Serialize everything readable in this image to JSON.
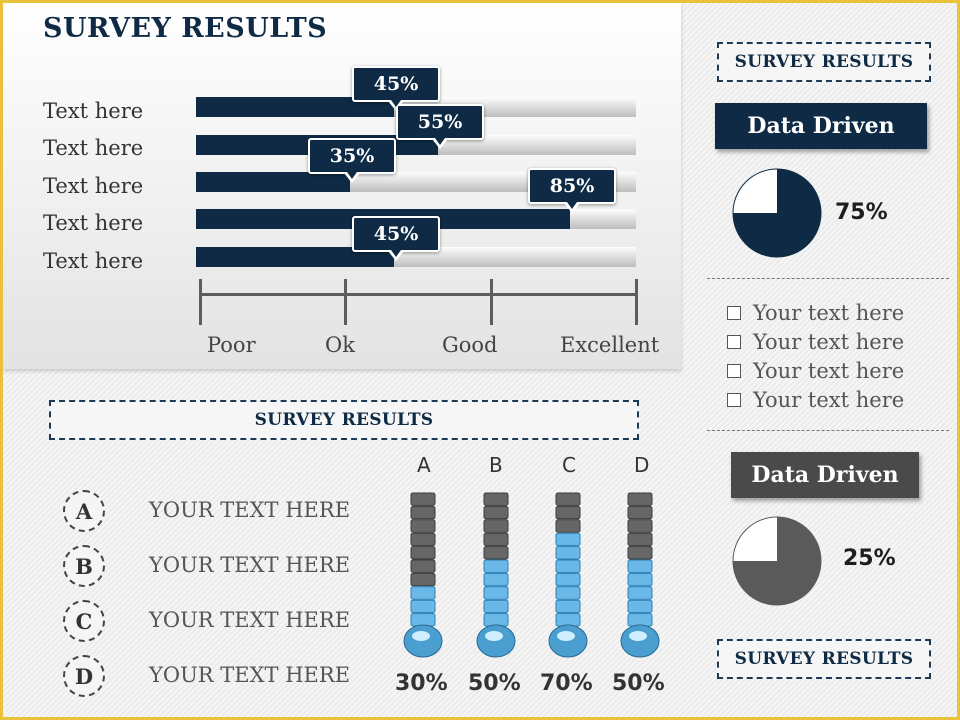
{
  "main": {
    "title": "SURVEY RESULTS",
    "scale_labels": [
      "Poor",
      "Ok",
      "Good",
      "Excellent"
    ]
  },
  "section_banner": "SURVEY RESULTS",
  "side": {
    "top_banner": "SURVEY RESULTS",
    "bottom_banner": "SURVEY RESULTS",
    "card1": {
      "title": "Data Driven",
      "value": "75%",
      "color": "#0e2a44"
    },
    "card2": {
      "title": "Data Driven",
      "value": "25%",
      "color": "#4a4a4a"
    },
    "checklist": [
      "Your text here",
      "Your text here",
      "Your text here",
      "Your text here"
    ]
  },
  "options": [
    {
      "letter": "A",
      "text": "YOUR TEXT HERE"
    },
    {
      "letter": "B",
      "text": "YOUR TEXT HERE"
    },
    {
      "letter": "C",
      "text": "YOUR TEXT HERE"
    },
    {
      "letter": "D",
      "text": "YOUR TEXT HERE"
    }
  ],
  "chart_data": [
    {
      "type": "bar",
      "orientation": "horizontal",
      "title": "SURVEY RESULTS",
      "categories": [
        "Text here",
        "Text here",
        "Text here",
        "Text here",
        "Text here"
      ],
      "values": [
        45,
        55,
        35,
        85,
        45
      ],
      "value_labels": [
        "45%",
        "55%",
        "35%",
        "85%",
        "45%"
      ],
      "scale_labels": [
        "Poor",
        "Ok",
        "Good",
        "Excellent"
      ],
      "xlim": [
        0,
        100
      ],
      "color": "#0e2a44"
    },
    {
      "type": "pie",
      "slices": [
        {
          "label": "",
          "value": 75,
          "color": "#0e2a44"
        },
        {
          "label": "",
          "value": 25,
          "color": "#ffffff"
        }
      ],
      "value_label": "75%"
    },
    {
      "type": "pie",
      "slices": [
        {
          "label": "",
          "value": 25,
          "color": "#ffffff"
        },
        {
          "label": "",
          "value": 75,
          "color": "#5a5a5a"
        }
      ],
      "value_label": "25%"
    },
    {
      "type": "bar",
      "style": "thermometer",
      "categories": [
        "A",
        "B",
        "C",
        "D"
      ],
      "values": [
        30,
        50,
        70,
        50
      ],
      "value_labels": [
        "30%",
        "50%",
        "70%",
        "50%"
      ],
      "ylim": [
        0,
        100
      ]
    }
  ]
}
